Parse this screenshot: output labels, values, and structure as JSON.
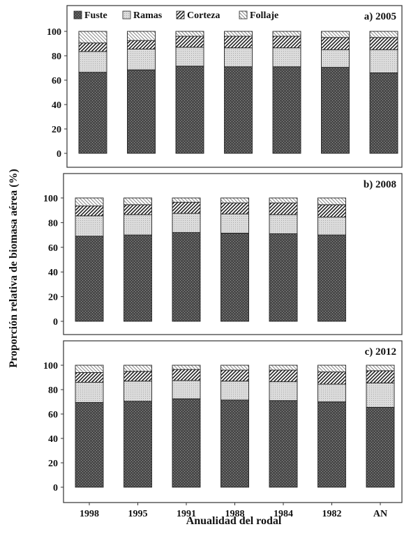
{
  "figure": {
    "ylabel": "Proporción relativa de biomasa aérea (%)",
    "xlabel": "Anualidad del rodal"
  },
  "legend": {
    "items": [
      {
        "label": "Fuste",
        "pattern": "fuste"
      },
      {
        "label": "Ramas",
        "pattern": "ramas"
      },
      {
        "label": "Corteza",
        "pattern": "corteza"
      },
      {
        "label": "Follaje",
        "pattern": "follaje"
      }
    ]
  },
  "colors": {
    "fuste": "#555555",
    "ramas": "#d6d6d6",
    "corteza": "#ffffff",
    "follaje": "#ffffff",
    "frame": "#333333"
  },
  "chart_data": [
    {
      "type": "bar",
      "stacked": true,
      "title": "a) 2005",
      "categories": [
        "1998",
        "1995",
        "1991",
        "1988",
        "1984",
        "1982",
        "AN"
      ],
      "series": [
        {
          "name": "Fuste",
          "values": [
            66.5,
            68.5,
            71.5,
            71,
            71,
            70.5,
            66
          ]
        },
        {
          "name": "Ramas",
          "values": [
            17,
            17,
            15.5,
            15.5,
            15.5,
            14.5,
            19
          ]
        },
        {
          "name": "Corteza",
          "values": [
            7,
            7,
            9,
            9.5,
            9.5,
            10,
            10
          ]
        },
        {
          "name": "Follaje",
          "values": [
            9.5,
            7.5,
            4,
            4,
            4,
            5,
            5
          ]
        }
      ],
      "ylim": [
        0,
        100
      ],
      "yticks": [
        0,
        20,
        40,
        60,
        80,
        100
      ],
      "xticklabels_shown": false
    },
    {
      "type": "bar",
      "stacked": true,
      "title": "b) 2008",
      "categories": [
        "1998",
        "1995",
        "1991",
        "1988",
        "1984",
        "1982"
      ],
      "series": [
        {
          "name": "Fuste",
          "values": [
            69,
            70,
            72,
            71.5,
            71,
            70
          ]
        },
        {
          "name": "Ramas",
          "values": [
            16.5,
            16.5,
            15.5,
            15.5,
            15.5,
            14.5
          ]
        },
        {
          "name": "Corteza",
          "values": [
            8,
            8,
            9,
            9,
            9.5,
            10
          ]
        },
        {
          "name": "Follaje",
          "values": [
            6.5,
            5.5,
            3.5,
            4,
            4,
            5.5
          ]
        }
      ],
      "ylim": [
        0,
        100
      ],
      "yticks": [
        0,
        20,
        40,
        60,
        80,
        100
      ],
      "xticklabels_shown": false
    },
    {
      "type": "bar",
      "stacked": true,
      "title": "c) 2012",
      "categories": [
        "1998",
        "1995",
        "1991",
        "1988",
        "1984",
        "1982",
        "AN"
      ],
      "series": [
        {
          "name": "Fuste",
          "values": [
            69.5,
            70.5,
            72.5,
            71.5,
            71,
            70,
            65.5
          ]
        },
        {
          "name": "Ramas",
          "values": [
            16.5,
            16.5,
            15,
            15.5,
            15.5,
            14.5,
            20
          ]
        },
        {
          "name": "Corteza",
          "values": [
            8,
            8,
            9,
            9,
            9.5,
            10,
            10
          ]
        },
        {
          "name": "Follaje",
          "values": [
            6,
            5,
            3.5,
            4,
            4,
            5.5,
            4.5
          ]
        }
      ],
      "ylim": [
        0,
        100
      ],
      "yticks": [
        0,
        20,
        40,
        60,
        80,
        100
      ],
      "xticklabels_shown": true
    }
  ]
}
